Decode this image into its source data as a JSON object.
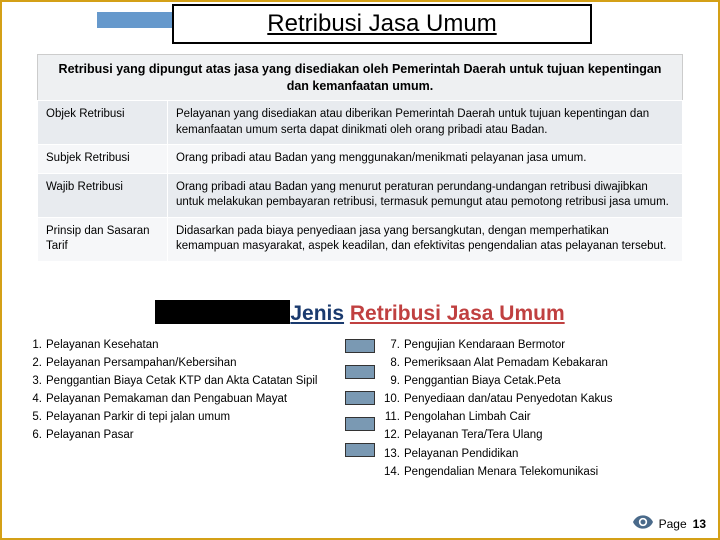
{
  "colors": {
    "accent": "#6699cc",
    "border": "#d4a017",
    "table_odd": "#e8ebef",
    "table_even": "#f6f7f9",
    "jenis_part1": "#1a3a6e",
    "jenis_part2": "#c04040",
    "square_fill": "#7a99b3"
  },
  "title": "Retribusi Jasa Umum",
  "subtitle": "Retribusi yang dipungut atas jasa yang disediakan oleh Pemerintah Daerah untuk tujuan kepentingan dan kemanfaatan umum.",
  "definitions": [
    {
      "term": "Objek Retribusi",
      "desc": "Pelayanan yang disediakan atau diberikan Pemerintah Daerah untuk tujuan kepentingan dan kemanfaatan umum serta dapat dinikmati oleh orang pribadi atau Badan."
    },
    {
      "term": "Subjek Retribusi",
      "desc": "Orang pribadi atau Badan yang menggunakan/menikmati pelayanan jasa umum."
    },
    {
      "term": "Wajib Retribusi",
      "desc": "Orang pribadi atau Badan yang menurut peraturan perundang-undangan retribusi diwajibkan untuk melakukan pembayaran retribusi, termasuk pemungut atau pemotong retribusi jasa umum."
    },
    {
      "term": "Prinsip dan Sasaran Tarif",
      "desc": "Didasarkan pada biaya penyediaan jasa yang bersangkutan, dengan memperhatikan kemampuan masyarakat, aspek keadilan, dan efektivitas pengendalian atas pelayanan tersebut."
    }
  ],
  "jenis": {
    "part1": "Jenis",
    "part2": "Retribusi Jasa Umum"
  },
  "list_left": [
    {
      "n": "1.",
      "t": "Pelayanan Kesehatan"
    },
    {
      "n": "2.",
      "t": "Pelayanan Persampahan/Kebersihan"
    },
    {
      "n": "3.",
      "t": "Penggantian Biaya Cetak KTP dan Akta Catatan Sipil"
    },
    {
      "n": "4.",
      "t": "Pelayanan Pemakaman dan Pengabuan Mayat"
    },
    {
      "n": "5.",
      "t": "Pelayanan Parkir di tepi jalan umum"
    },
    {
      "n": "6.",
      "t": "Pelayanan Pasar"
    }
  ],
  "list_right": [
    {
      "n": "7.",
      "t": "Pengujian Kendaraan Bermotor"
    },
    {
      "n": "8.",
      "t": "Pemeriksaan Alat Pemadam Kebakaran"
    },
    {
      "n": "9.",
      "t": "Penggantian Biaya Cetak.Peta"
    },
    {
      "n": "10.",
      "t": "Penyediaan dan/atau Penyedotan Kakus"
    },
    {
      "n": "11.",
      "t": "Pengolahan Limbah Cair"
    },
    {
      "n": "12.",
      "t": "Pelayanan Tera/Tera Ulang"
    },
    {
      "n": "13.",
      "t": "Pelayanan Pendidikan"
    },
    {
      "n": "14.",
      "t": "Pengendalian Menara Telekomunikasi"
    }
  ],
  "page_label": "Page",
  "page_number": "13"
}
